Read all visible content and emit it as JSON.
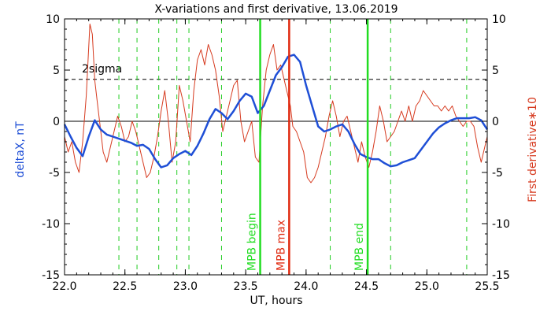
{
  "chart_data": {
    "type": "line",
    "title": "X-variations and first derivative, 13.06.2019",
    "xlabel": "UT, hours",
    "ylabel_left": "deltaX, nT",
    "ylabel_right": "First derivative∗10",
    "xlim": [
      22.0,
      25.5
    ],
    "ylim": [
      -15,
      10
    ],
    "x_ticks": [
      "22.0",
      "22.5",
      "23.0",
      "23.5",
      "24.0",
      "24.5",
      "25.0",
      "25.5"
    ],
    "y_ticks": [
      "10",
      "5",
      "0",
      "-5",
      "-10",
      "-15"
    ],
    "colors": {
      "deltaX": "#1f4fd6",
      "derivative": "#d63a1f",
      "mpb_begin_end": "#22dd22",
      "mpb_max": "#e02a10",
      "guides": "#22cc22"
    },
    "sigma_level": {
      "label": "2sigma",
      "value": 4.1
    },
    "dashed_verticals": [
      22.45,
      22.6,
      22.78,
      22.93,
      23.03,
      23.3,
      24.2,
      24.7,
      25.33
    ],
    "markers": [
      {
        "x": 23.62,
        "label": "MPB begin"
      },
      {
        "x": 23.86,
        "label": "MPB max"
      },
      {
        "x": 24.51,
        "label": "MPB end"
      }
    ],
    "series": [
      {
        "key": "deltaX",
        "x": [
          22.0,
          22.05,
          22.1,
          22.15,
          22.2,
          22.25,
          22.3,
          22.35,
          22.4,
          22.45,
          22.5,
          22.55,
          22.6,
          22.65,
          22.7,
          22.75,
          22.8,
          22.85,
          22.9,
          22.95,
          23.0,
          23.05,
          23.1,
          23.15,
          23.2,
          23.25,
          23.3,
          23.35,
          23.4,
          23.45,
          23.5,
          23.55,
          23.6,
          23.65,
          23.7,
          23.75,
          23.8,
          23.85,
          23.9,
          23.95,
          24.0,
          24.05,
          24.1,
          24.15,
          24.2,
          24.25,
          24.3,
          24.35,
          24.4,
          24.45,
          24.5,
          24.55,
          24.6,
          24.65,
          24.7,
          24.75,
          24.8,
          24.85,
          24.9,
          24.95,
          25.0,
          25.05,
          25.1,
          25.15,
          25.2,
          25.25,
          25.3,
          25.35,
          25.4,
          25.45,
          25.5
        ],
        "values": [
          -0.3,
          -1.5,
          -2.6,
          -3.4,
          -1.5,
          0.1,
          -0.8,
          -1.3,
          -1.5,
          -1.7,
          -1.9,
          -2.1,
          -2.4,
          -2.3,
          -2.7,
          -3.7,
          -4.5,
          -4.3,
          -3.6,
          -3.2,
          -2.9,
          -3.3,
          -2.4,
          -1.2,
          0.2,
          1.2,
          0.8,
          0.2,
          1.0,
          2.0,
          2.7,
          2.4,
          0.8,
          1.5,
          3.0,
          4.5,
          5.3,
          6.3,
          6.5,
          5.8,
          3.5,
          1.5,
          -0.5,
          -1.0,
          -0.8,
          -0.5,
          -0.3,
          -1.0,
          -2.2,
          -3.2,
          -3.5,
          -3.7,
          -3.7,
          -4.1,
          -4.4,
          -4.3,
          -4.0,
          -3.8,
          -3.6,
          -2.8,
          -2.0,
          -1.2,
          -0.6,
          -0.2,
          0.1,
          0.3,
          0.3,
          0.3,
          0.4,
          0.1,
          -0.8
        ]
      },
      {
        "key": "derivative",
        "x": [
          22.0,
          22.03,
          22.06,
          22.09,
          22.12,
          22.15,
          22.18,
          22.21,
          22.23,
          22.25,
          22.27,
          22.29,
          22.32,
          22.35,
          22.38,
          22.41,
          22.44,
          22.47,
          22.5,
          22.53,
          22.56,
          22.59,
          22.62,
          22.65,
          22.68,
          22.71,
          22.74,
          22.77,
          22.8,
          22.83,
          22.86,
          22.89,
          22.92,
          22.95,
          22.98,
          23.01,
          23.04,
          23.07,
          23.1,
          23.13,
          23.16,
          23.19,
          23.22,
          23.25,
          23.28,
          23.31,
          23.34,
          23.37,
          23.4,
          23.43,
          23.46,
          23.49,
          23.52,
          23.55,
          23.58,
          23.61,
          23.64,
          23.67,
          23.7,
          23.73,
          23.76,
          23.79,
          23.82,
          23.85,
          23.87,
          23.89,
          23.92,
          23.95,
          23.98,
          24.01,
          24.04,
          24.07,
          24.1,
          24.13,
          24.16,
          24.19,
          24.22,
          24.25,
          24.28,
          24.31,
          24.34,
          24.37,
          24.4,
          24.43,
          24.46,
          24.49,
          24.52,
          24.55,
          24.58,
          24.61,
          24.64,
          24.67,
          24.7,
          24.73,
          24.76,
          24.79,
          24.82,
          24.85,
          24.88,
          24.91,
          24.94,
          24.97,
          25.0,
          25.03,
          25.06,
          25.09,
          25.12,
          25.15,
          25.18,
          25.21,
          25.24,
          25.27,
          25.3,
          25.33,
          25.36,
          25.39,
          25.42,
          25.45,
          25.48,
          25.5
        ],
        "values": [
          -1.5,
          -3.0,
          -2.0,
          -4.0,
          -5.0,
          -2.0,
          2.5,
          9.5,
          8.5,
          4.0,
          2.0,
          0.0,
          -3.0,
          -4.0,
          -2.5,
          -1.0,
          0.5,
          -0.5,
          -2.0,
          -1.5,
          0.0,
          -1.0,
          -2.5,
          -4.0,
          -5.5,
          -5.0,
          -3.5,
          -1.5,
          1.0,
          3.0,
          0.0,
          -4.0,
          -2.0,
          3.5,
          2.0,
          0.0,
          -2.0,
          3.0,
          6.0,
          7.0,
          5.5,
          7.5,
          6.5,
          5.0,
          2.5,
          -1.0,
          0.5,
          2.0,
          3.5,
          4.0,
          0.0,
          -2.0,
          -1.0,
          0.0,
          -3.5,
          -4.0,
          1.5,
          5.0,
          6.5,
          7.5,
          5.0,
          5.5,
          4.0,
          2.5,
          1.5,
          -0.5,
          -1.0,
          -2.0,
          -3.0,
          -5.5,
          -6.0,
          -5.5,
          -4.5,
          -3.0,
          -1.5,
          0.5,
          2.0,
          0.5,
          -1.5,
          0.0,
          0.5,
          -1.0,
          -2.5,
          -4.0,
          -2.0,
          -3.5,
          -4.5,
          -3.0,
          -1.0,
          1.5,
          0.0,
          -2.0,
          -1.5,
          -1.0,
          0.0,
          1.0,
          0.0,
          1.5,
          0.0,
          1.5,
          2.0,
          3.0,
          2.5,
          2.0,
          1.5,
          1.5,
          1.0,
          1.5,
          1.0,
          1.5,
          0.5,
          0.0,
          -0.5,
          0.0,
          0.0,
          -0.5,
          -2.5,
          -4.0,
          -2.5,
          -1.5
        ]
      }
    ]
  }
}
